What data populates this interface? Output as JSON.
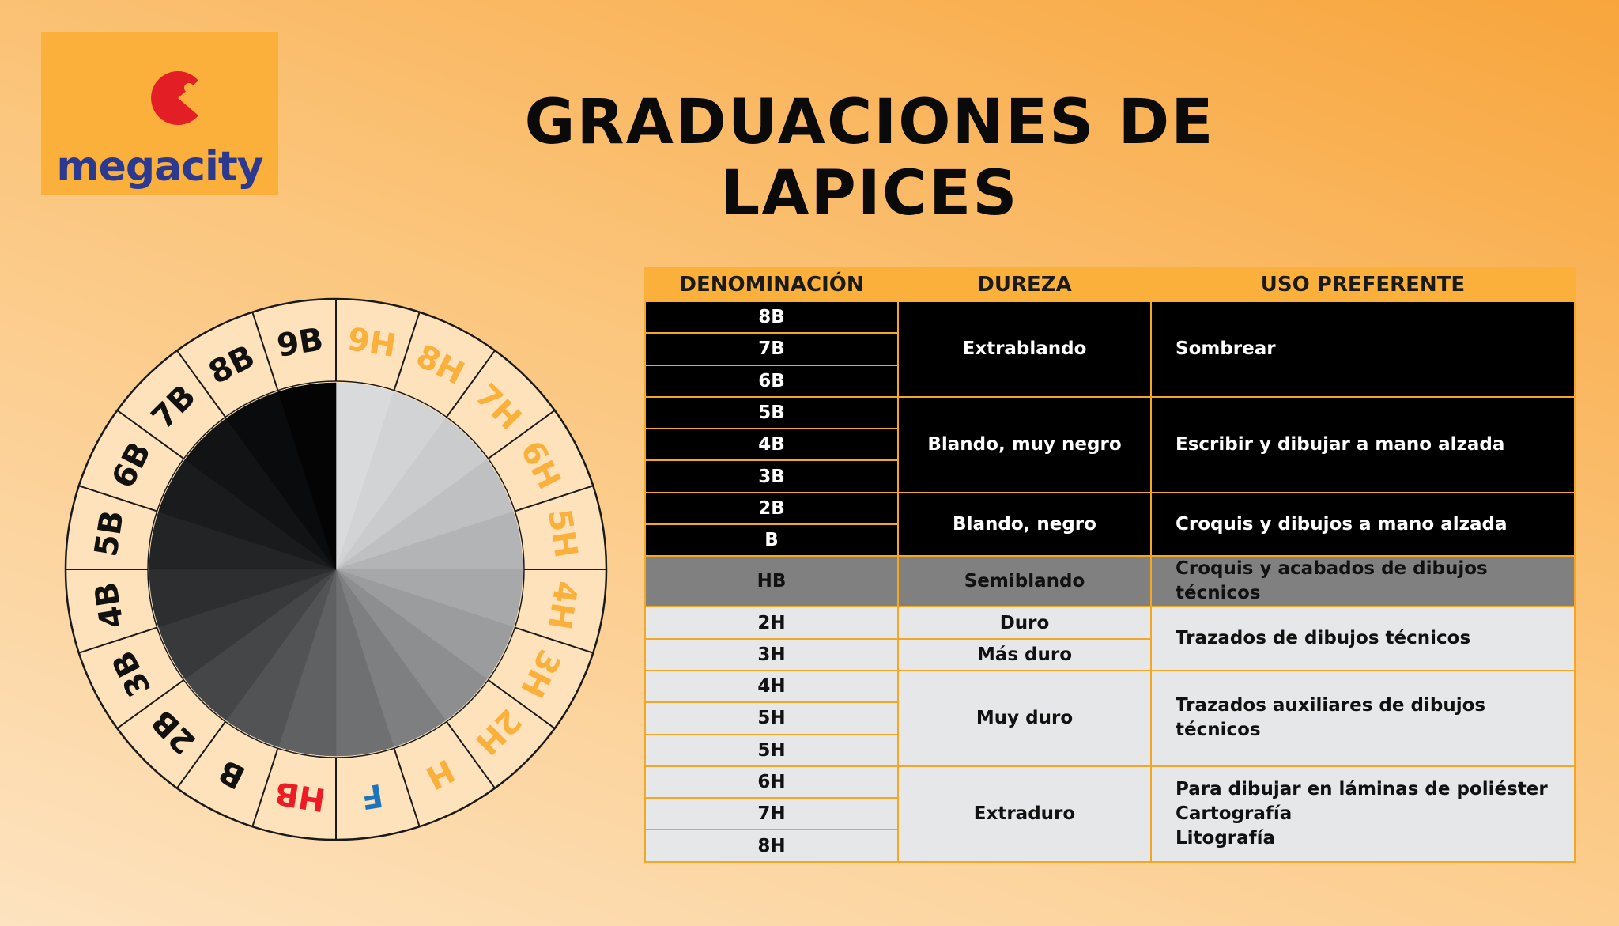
{
  "logo": {
    "text": "megacity",
    "mark_color": "#e31e24",
    "text_color": "#2b3990",
    "box_color": "#fbb03b"
  },
  "title": "GRADUACIONES DE LAPICES",
  "wheel": {
    "segments": [
      {
        "label": "9H",
        "color": "#fbb03b",
        "shade": "#d9dadc"
      },
      {
        "label": "8H",
        "color": "#fbb03b",
        "shade": "#d2d3d5"
      },
      {
        "label": "7H",
        "color": "#fbb03b",
        "shade": "#cacbcd"
      },
      {
        "label": "6H",
        "color": "#fbb03b",
        "shade": "#bfc0c2"
      },
      {
        "label": "5H",
        "color": "#fbb03b",
        "shade": "#b3b4b6"
      },
      {
        "label": "4H",
        "color": "#fbb03b",
        "shade": "#a7a8aa"
      },
      {
        "label": "3H",
        "color": "#fbb03b",
        "shade": "#9b9c9e"
      },
      {
        "label": "2H",
        "color": "#fbb03b",
        "shade": "#8d8e90"
      },
      {
        "label": "H",
        "color": "#fbb03b",
        "shade": "#7e7f81"
      },
      {
        "label": "F",
        "color": "#1c75bc",
        "shade": "#6f7072"
      },
      {
        "label": "HB",
        "color": "#ed1c24",
        "shade": "#606163"
      },
      {
        "label": "B",
        "color": "#111111",
        "shade": "#525355"
      },
      {
        "label": "2B",
        "color": "#111111",
        "shade": "#454648"
      },
      {
        "label": "3B",
        "color": "#111111",
        "shade": "#38393b"
      },
      {
        "label": "4B",
        "color": "#111111",
        "shade": "#2d2e30"
      },
      {
        "label": "5B",
        "color": "#111111",
        "shade": "#232426"
      },
      {
        "label": "6B",
        "color": "#111111",
        "shade": "#1a1b1d"
      },
      {
        "label": "7B",
        "color": "#111111",
        "shade": "#121314"
      },
      {
        "label": "8B",
        "color": "#111111",
        "shade": "#0a0b0c"
      },
      {
        "label": "9B",
        "color": "#111111",
        "shade": "#040405"
      }
    ]
  },
  "table": {
    "headers": [
      "DENOMINACIÓN",
      "DUREZA",
      "USO PREFERENTE"
    ],
    "rows": [
      "8B",
      "7B",
      "6B",
      "5B",
      "4B",
      "3B",
      "2B",
      "B",
      "HB",
      "2H",
      "3H",
      "4H",
      "5H",
      "5H",
      "6H",
      "7H",
      "8H"
    ],
    "groups": {
      "extrablando": {
        "dureza": "Extrablando",
        "uso": "Sombrear"
      },
      "muy_negro": {
        "dureza": "Blando, muy negro",
        "uso": "Escribir y dibujar a mano alzada"
      },
      "negro": {
        "dureza": "Blando, negro",
        "uso": "Croquis y dibujos a mano alzada"
      },
      "semiblando": {
        "dureza": "Semiblando",
        "uso": "Croquis y acabados de dibujos técnicos"
      },
      "duro": {
        "dureza": "Duro"
      },
      "mas_duro": {
        "dureza": "Más duro"
      },
      "trazados": {
        "uso": "Trazados de dibujos técnicos"
      },
      "muy_duro": {
        "dureza": "Muy duro",
        "uso": "Trazados auxiliares de dibujos técnicos"
      },
      "extraduro": {
        "dureza": "Extraduro",
        "uso": [
          "Para dibujar en láminas de poliéster",
          "Cartografía",
          "Litografía"
        ]
      }
    }
  }
}
